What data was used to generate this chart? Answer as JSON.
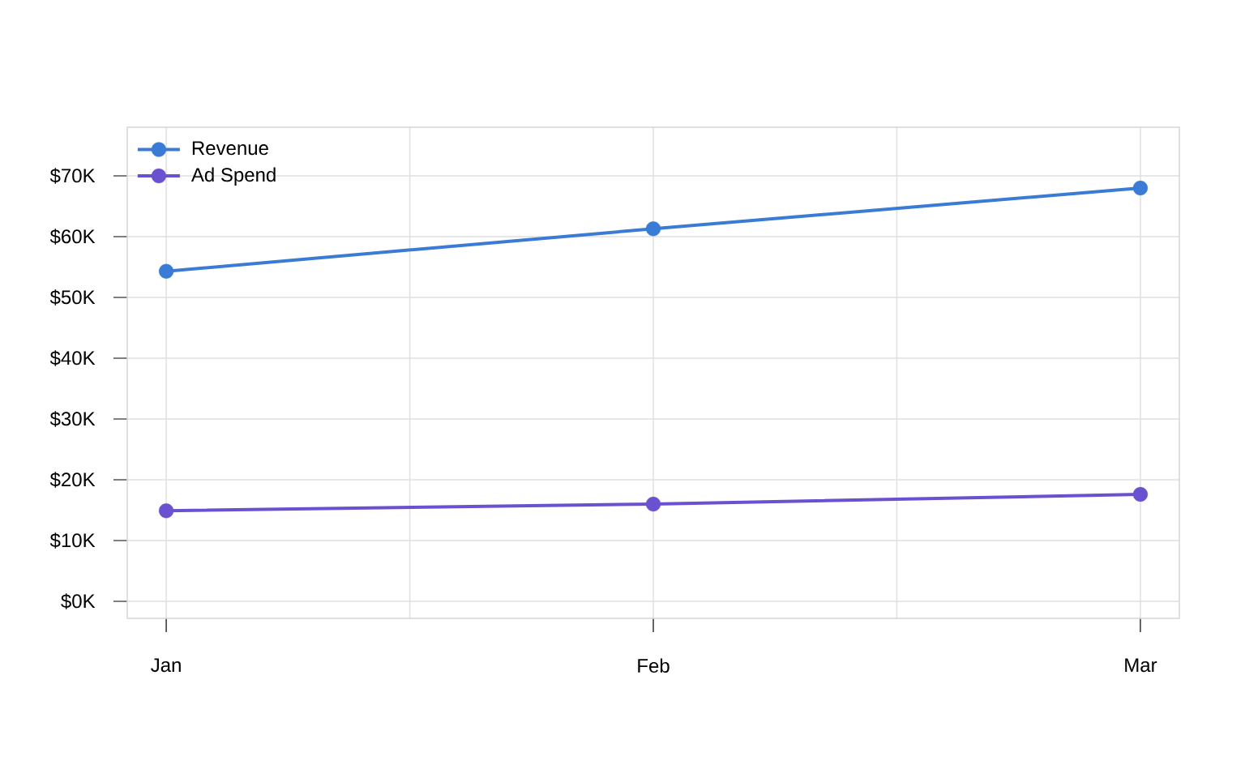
{
  "chart_data": {
    "type": "line",
    "categories": [
      "Jan",
      "Feb",
      "Mar"
    ],
    "series": [
      {
        "name": "Revenue",
        "color": "#3a7bd5",
        "values": [
          54300,
          61300,
          68000
        ]
      },
      {
        "name": "Ad Spend",
        "color": "#6a51cf",
        "values": [
          14900,
          16000,
          17600
        ]
      }
    ],
    "ylim": [
      -2800,
      78000
    ],
    "yticks": [
      {
        "value": 0,
        "label": "$0K"
      },
      {
        "value": 10000,
        "label": "$10K"
      },
      {
        "value": 20000,
        "label": "$20K"
      },
      {
        "value": 30000,
        "label": "$30K"
      },
      {
        "value": 40000,
        "label": "$40K"
      },
      {
        "value": 50000,
        "label": "$50K"
      },
      {
        "value": 60000,
        "label": "$60K"
      },
      {
        "value": 70000,
        "label": "$70K"
      }
    ],
    "grid": true,
    "legend": "top left",
    "marker": "circle",
    "line_style": "solid"
  }
}
